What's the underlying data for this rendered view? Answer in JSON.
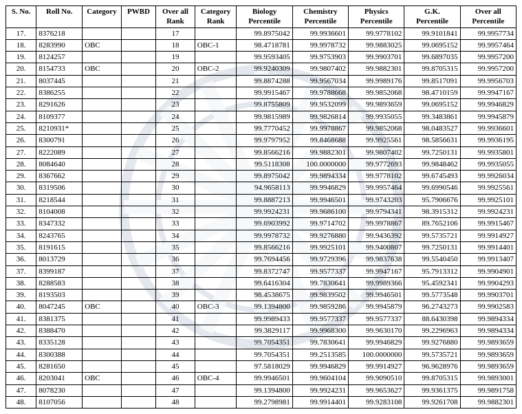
{
  "table": {
    "columns": [
      {
        "key": "sno",
        "label": "S. No.",
        "cls": "c-sno",
        "align": "center"
      },
      {
        "key": "roll",
        "label": "Roll No.",
        "cls": "c-roll",
        "align": "left"
      },
      {
        "key": "category",
        "label": "Category",
        "cls": "c-cat",
        "align": "left"
      },
      {
        "key": "pwbd",
        "label": "PWBD",
        "cls": "c-pwbd",
        "align": "left"
      },
      {
        "key": "orank",
        "label": "Over all\nRank",
        "cls": "c-orank",
        "align": "center"
      },
      {
        "key": "crank",
        "label": "Category\nRank",
        "cls": "c-crank",
        "align": "left"
      },
      {
        "key": "bio",
        "label": "Biology\nPercentile",
        "cls": "c-perc",
        "align": "right"
      },
      {
        "key": "chem",
        "label": "Chemistry\nPercentile",
        "cls": "c-perc",
        "align": "right"
      },
      {
        "key": "phy",
        "label": "Physics\nPercentile",
        "cls": "c-perc",
        "align": "right"
      },
      {
        "key": "gk",
        "label": "G.K.\nPercentile",
        "cls": "c-perc",
        "align": "right"
      },
      {
        "key": "overall",
        "label": "Over all\nPercentile",
        "cls": "c-perc",
        "align": "right"
      }
    ],
    "rows": [
      {
        "sno": "17.",
        "roll": "8376218",
        "category": "",
        "pwbd": "",
        "orank": "17",
        "crank": "",
        "bio": "99.8975042",
        "chem": "99.9936601",
        "phy": "99.9778102",
        "gk": "99.9101841",
        "overall": "99.9957734"
      },
      {
        "sno": "18.",
        "roll": "8283990",
        "category": "OBC",
        "pwbd": "",
        "orank": "18",
        "crank": "OBC-1",
        "bio": "98.4718781",
        "chem": "99.9978732",
        "phy": "99.9883025",
        "gk": "99.0695152",
        "overall": "99.9957464"
      },
      {
        "sno": "19.",
        "roll": "8124257",
        "category": "",
        "pwbd": "",
        "orank": "19",
        "crank": "",
        "bio": "99.9593405",
        "chem": "99.9753903",
        "phy": "99.9903701",
        "gk": "99.6897035",
        "overall": "99.9957200"
      },
      {
        "sno": "20.",
        "roll": "8154733",
        "category": "OBC",
        "pwbd": "",
        "orank": "20",
        "crank": "OBC-2",
        "bio": "99.9240309",
        "chem": "99.9807402",
        "phy": "99.9882301",
        "gk": "99.8705315",
        "overall": "99.9957200"
      },
      {
        "sno": "21.",
        "roll": "8037445",
        "category": "",
        "pwbd": "",
        "orank": "21",
        "crank": "",
        "bio": "99.8874288",
        "chem": "99.9567034",
        "phy": "99.9989176",
        "gk": "99.8517091",
        "overall": "99.9956703"
      },
      {
        "sno": "22.",
        "roll": "8386255",
        "category": "",
        "pwbd": "",
        "orank": "22",
        "crank": "",
        "bio": "99.9915467",
        "chem": "99.9788668",
        "phy": "99.9852068",
        "gk": "98.4710159",
        "overall": "99.9947167"
      },
      {
        "sno": "23.",
        "roll": "8291626",
        "category": "",
        "pwbd": "",
        "orank": "23",
        "crank": "",
        "bio": "99.8755809",
        "chem": "99.9532099",
        "phy": "99.9893659",
        "gk": "99.0695152",
        "overall": "99.9946829"
      },
      {
        "sno": "24.",
        "roll": "8109377",
        "category": "",
        "pwbd": "",
        "orank": "24",
        "crank": "",
        "bio": "99.9815989",
        "chem": "99.9826814",
        "phy": "99.9935055",
        "gk": "99.3483861",
        "overall": "99.9945879"
      },
      {
        "sno": "25.",
        "roll": "8210931*",
        "category": "",
        "pwbd": "",
        "orank": "25",
        "crank": "",
        "bio": "99.7770452",
        "chem": "99.9978867",
        "phy": "99.9852068",
        "gk": "98.0483527",
        "overall": "99.9936601"
      },
      {
        "sno": "26.",
        "roll": "8300791",
        "category": "",
        "pwbd": "",
        "orank": "26",
        "crank": "",
        "bio": "99.9797952",
        "chem": "99.8468688",
        "phy": "99.9925561",
        "gk": "98.5856631",
        "overall": "99.9936195"
      },
      {
        "sno": "27.",
        "roll": "8222089",
        "category": "",
        "pwbd": "",
        "orank": "27",
        "crank": "",
        "bio": "99.8566216",
        "chem": "99.9882301",
        "phy": "99.9807402",
        "gk": "99.7250131",
        "overall": "99.9935801"
      },
      {
        "sno": "28.",
        "roll": "8084640",
        "category": "",
        "pwbd": "",
        "orank": "28",
        "crank": "",
        "bio": "99.5118308",
        "chem": "100.0000000",
        "phy": "99.9772693",
        "gk": "99.9848462",
        "overall": "99.9935055"
      },
      {
        "sno": "29.",
        "roll": "8367662",
        "category": "",
        "pwbd": "",
        "orank": "29",
        "crank": "",
        "bio": "99.8975042",
        "chem": "99.9894334",
        "phy": "99.9778102",
        "gk": "99.6745493",
        "overall": "99.9926034"
      },
      {
        "sno": "30.",
        "roll": "8319506",
        "category": "",
        "pwbd": "",
        "orank": "30",
        "crank": "",
        "bio": "94.9658113",
        "chem": "99.9946829",
        "phy": "99.9957464",
        "gk": "99.6990546",
        "overall": "99.9925561"
      },
      {
        "sno": "31.",
        "roll": "8218544",
        "category": "",
        "pwbd": "",
        "orank": "31",
        "crank": "",
        "bio": "99.8887213",
        "chem": "99.9946501",
        "phy": "99.9743203",
        "gk": "95.7906676",
        "overall": "99.9925101"
      },
      {
        "sno": "32.",
        "roll": "8104008",
        "category": "",
        "pwbd": "",
        "orank": "32",
        "crank": "",
        "bio": "99.9924231",
        "chem": "99.9686100",
        "phy": "99.9794341",
        "gk": "98.3915312",
        "overall": "99.9924231"
      },
      {
        "sno": "33.",
        "roll": "8347332",
        "category": "",
        "pwbd": "",
        "orank": "33",
        "crank": "",
        "bio": "99.6903992",
        "chem": "99.9714702",
        "phy": "99.9978867",
        "gk": "89.7652106",
        "overall": "99.9915467"
      },
      {
        "sno": "34.",
        "roll": "8243765",
        "category": "",
        "pwbd": "",
        "orank": "34",
        "crank": "",
        "bio": "99.9978732",
        "chem": "99.9276880",
        "phy": "99.9436392",
        "gk": "99.5735721",
        "overall": "99.9914927"
      },
      {
        "sno": "35.",
        "roll": "8191615",
        "category": "",
        "pwbd": "",
        "orank": "35",
        "crank": "",
        "bio": "99.8566216",
        "chem": "99.9925101",
        "phy": "99.9400807",
        "gk": "99.7250131",
        "overall": "99.9914401"
      },
      {
        "sno": "36.",
        "roll": "8013729",
        "category": "",
        "pwbd": "",
        "orank": "36",
        "crank": "",
        "bio": "99.7694456",
        "chem": "99.9729396",
        "phy": "99.9837638",
        "gk": "99.5540450",
        "overall": "99.9913407"
      },
      {
        "sno": "37.",
        "roll": "8399187",
        "category": "",
        "pwbd": "",
        "orank": "37",
        "crank": "",
        "bio": "99.8372747",
        "chem": "99.9577337",
        "phy": "99.9947167",
        "gk": "95.7913312",
        "overall": "99.9904901"
      },
      {
        "sno": "38.",
        "roll": "8288583",
        "category": "",
        "pwbd": "",
        "orank": "38",
        "crank": "",
        "bio": "99.6416304",
        "chem": "99.7830641",
        "phy": "99.9989366",
        "gk": "95.4592341",
        "overall": "99.9904293"
      },
      {
        "sno": "39.",
        "roll": "8193503",
        "category": "",
        "pwbd": "",
        "orank": "39",
        "crank": "",
        "bio": "98.4538675",
        "chem": "99.9839502",
        "phy": "99.9946501",
        "gk": "99.5773548",
        "overall": "99.9903701"
      },
      {
        "sno": "40.",
        "roll": "8047245",
        "category": "OBC",
        "pwbd": "",
        "orank": "40",
        "crank": "OBC-3",
        "bio": "99.1394800",
        "chem": "99.9859286",
        "phy": "99.9945879",
        "gk": "96.2743273",
        "overall": "99.9902583"
      },
      {
        "sno": "41.",
        "roll": "8381375",
        "category": "",
        "pwbd": "",
        "orank": "41",
        "crank": "",
        "bio": "99.9989433",
        "chem": "99.9577337",
        "phy": "99.9577337",
        "gk": "88.6430398",
        "overall": "99.9894334"
      },
      {
        "sno": "42.",
        "roll": "8388470",
        "category": "",
        "pwbd": "",
        "orank": "42",
        "crank": "",
        "bio": "99.3829117",
        "chem": "99.9968300",
        "phy": "99.9630170",
        "gk": "99.2296963",
        "overall": "99.9894334"
      },
      {
        "sno": "43.",
        "roll": "8335128",
        "category": "",
        "pwbd": "",
        "orank": "43",
        "crank": "",
        "bio": "99.7054351",
        "chem": "99.7830641",
        "phy": "99.9946829",
        "gk": "99.9276880",
        "overall": "99.9893659"
      },
      {
        "sno": "44.",
        "roll": "8300388",
        "category": "",
        "pwbd": "",
        "orank": "44",
        "crank": "",
        "bio": "99.7054351",
        "chem": "99.2513585",
        "phy": "100.0000000",
        "gk": "99.5735721",
        "overall": "99.9893659"
      },
      {
        "sno": "45.",
        "roll": "8281650",
        "category": "",
        "pwbd": "",
        "orank": "45",
        "crank": "",
        "bio": "97.5818029",
        "chem": "99.9946829",
        "phy": "99.9914927",
        "gk": "96.9628976",
        "overall": "99.9893659"
      },
      {
        "sno": "46.",
        "roll": "8203041",
        "category": "OBC",
        "pwbd": "",
        "orank": "46",
        "crank": "OBC-4",
        "bio": "99.9946501",
        "chem": "99.9604104",
        "phy": "99.9090510",
        "gk": "99.8705315",
        "overall": "99.9893001"
      },
      {
        "sno": "47.",
        "roll": "8078230",
        "category": "",
        "pwbd": "",
        "orank": "47",
        "crank": "",
        "bio": "99.1394800",
        "chem": "99.9924231",
        "phy": "99.9653627",
        "gk": "99.9361375",
        "overall": "99.9891758"
      },
      {
        "sno": "48.",
        "roll": "8107056",
        "category": "",
        "pwbd": "",
        "orank": "48",
        "crank": "",
        "bio": "99.2798981",
        "chem": "99.9914401",
        "phy": "99.9283108",
        "gk": "99.9261708",
        "overall": "99.9882301"
      }
    ],
    "border_color": "#000000",
    "font_size": 11,
    "font_family": "Times New Roman"
  },
  "watermark": {
    "outer_color": "#2a4a7a",
    "stripe_color": "#b8c8dc",
    "shape": "circle-with-radial-stripes"
  }
}
